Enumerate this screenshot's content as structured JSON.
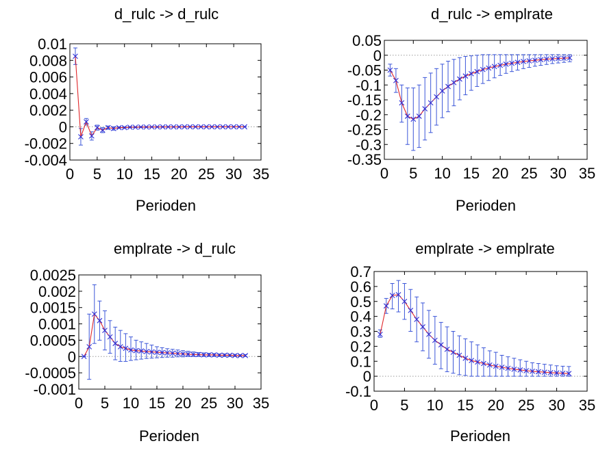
{
  "chart_data": [
    {
      "type": "line",
      "title": "d_rulc -> d_rulc",
      "xlabel": "Perioden",
      "xlim": [
        0,
        35
      ],
      "ylim": [
        -0.004,
        0.01
      ],
      "xticks": [
        0,
        5,
        10,
        15,
        20,
        25,
        30,
        35
      ],
      "xtick_labels": [
        "0",
        "5",
        "10",
        "15",
        "20",
        "25",
        "30",
        "35"
      ],
      "yticks": [
        -0.004,
        -0.002,
        0,
        0.002,
        0.004,
        0.006,
        0.008,
        0.01
      ],
      "ytick_labels": [
        "-0.004",
        "-0.002",
        "0",
        "0.002",
        "0.004",
        "0.006",
        "0.008",
        "0.01"
      ],
      "zero_line": true,
      "x": [
        1,
        2,
        3,
        4,
        5,
        6,
        7,
        8,
        9,
        10,
        11,
        12,
        13,
        14,
        15,
        16,
        17,
        18,
        19,
        20,
        21,
        22,
        23,
        24,
        25,
        26,
        27,
        28,
        29,
        30,
        31,
        32
      ],
      "y": [
        0.0085,
        -0.0012,
        0.0006,
        -0.0011,
        -0.0001,
        -0.0004,
        -0.0001,
        -0.0002,
        -0.0001,
        -0.0001,
        -5e-05,
        -5e-05,
        -3e-05,
        -3e-05,
        -2e-05,
        -2e-05,
        -1e-05,
        -1e-05,
        -1e-05,
        -1e-05,
        0,
        0,
        0,
        0,
        0,
        0,
        0,
        0,
        0,
        0,
        0,
        0
      ],
      "lower": [
        0.0075,
        -0.0022,
        0.0002,
        -0.0016,
        -0.0004,
        -0.0007,
        -0.0003,
        -0.0004,
        -0.0002,
        -0.0002,
        -0.00012,
        -0.0001,
        -8e-05,
        -7e-05,
        -5e-05,
        -5e-05,
        -4e-05,
        -3e-05,
        -3e-05,
        -3e-05,
        -2e-05,
        -2e-05,
        -2e-05,
        -2e-05,
        -1e-05,
        -1e-05,
        -1e-05,
        -1e-05,
        -1e-05,
        -1e-05,
        -1e-05,
        -1e-05
      ],
      "upper": [
        0.0095,
        -0.0002,
        0.001,
        -0.0006,
        0.0002,
        -0.0001,
        0.0001,
        0,
        0,
        0,
        2e-05,
        0,
        2e-05,
        1e-05,
        1e-05,
        1e-05,
        2e-05,
        1e-05,
        1e-05,
        1e-05,
        2e-05,
        2e-05,
        2e-05,
        2e-05,
        1e-05,
        1e-05,
        1e-05,
        1e-05,
        1e-05,
        1e-05,
        1e-05,
        1e-05
      ]
    },
    {
      "type": "line",
      "title": "d_rulc -> emplrate",
      "xlabel": "Perioden",
      "xlim": [
        0,
        35
      ],
      "ylim": [
        -0.35,
        0.05
      ],
      "xticks": [
        0,
        5,
        10,
        15,
        20,
        25,
        30,
        35
      ],
      "xtick_labels": [
        "0",
        "5",
        "10",
        "15",
        "20",
        "25",
        "30",
        "35"
      ],
      "yticks": [
        -0.35,
        -0.3,
        -0.25,
        -0.2,
        -0.15,
        -0.1,
        -0.05,
        0,
        0.05
      ],
      "ytick_labels": [
        "-0.35",
        "-0.3",
        "-0.25",
        "-0.2",
        "-0.15",
        "-0.1",
        "-0.05",
        "0",
        "0.05"
      ],
      "zero_line": true,
      "x": [
        1,
        2,
        3,
        4,
        5,
        6,
        7,
        8,
        9,
        10,
        11,
        12,
        13,
        14,
        15,
        16,
        17,
        18,
        19,
        20,
        21,
        22,
        23,
        24,
        25,
        26,
        27,
        28,
        29,
        30,
        31,
        32
      ],
      "y": [
        -0.05,
        -0.085,
        -0.16,
        -0.205,
        -0.215,
        -0.205,
        -0.18,
        -0.16,
        -0.14,
        -0.12,
        -0.105,
        -0.092,
        -0.08,
        -0.07,
        -0.062,
        -0.055,
        -0.048,
        -0.043,
        -0.038,
        -0.034,
        -0.03,
        -0.027,
        -0.024,
        -0.021,
        -0.019,
        -0.017,
        -0.015,
        -0.013,
        -0.012,
        -0.011,
        -0.01,
        -0.009
      ],
      "lower": [
        -0.07,
        -0.125,
        -0.225,
        -0.3,
        -0.32,
        -0.31,
        -0.285,
        -0.26,
        -0.235,
        -0.21,
        -0.19,
        -0.17,
        -0.15,
        -0.133,
        -0.118,
        -0.105,
        -0.095,
        -0.085,
        -0.076,
        -0.068,
        -0.061,
        -0.055,
        -0.05,
        -0.045,
        -0.041,
        -0.037,
        -0.034,
        -0.031,
        -0.028,
        -0.026,
        -0.024,
        -0.022
      ],
      "upper": [
        -0.03,
        -0.045,
        -0.1,
        -0.11,
        -0.11,
        -0.1,
        -0.075,
        -0.06,
        -0.045,
        -0.03,
        -0.02,
        -0.014,
        -0.008,
        -0.004,
        -0.002,
        0,
        0.002,
        0.002,
        0.002,
        0.002,
        0.002,
        0.002,
        0.002,
        0.002,
        0.002,
        0.002,
        0.002,
        0.002,
        0.002,
        0.002,
        0.002,
        0.002
      ]
    },
    {
      "type": "line",
      "title": "emplrate -> d_rulc",
      "xlabel": "Perioden",
      "xlim": [
        0,
        35
      ],
      "ylim": [
        -0.001,
        0.0025
      ],
      "xticks": [
        0,
        5,
        10,
        15,
        20,
        25,
        30,
        35
      ],
      "xtick_labels": [
        "0",
        "5",
        "10",
        "15",
        "20",
        "25",
        "30",
        "35"
      ],
      "yticks": [
        -0.001,
        -0.0005,
        0,
        0.0005,
        0.001,
        0.0015,
        0.002,
        0.0025
      ],
      "ytick_labels": [
        "-0.001",
        "-0.0005",
        "0",
        "0.0005",
        "0.001",
        "0.0015",
        "0.002",
        "0.0025"
      ],
      "zero_line": true,
      "x": [
        1,
        2,
        3,
        4,
        5,
        6,
        7,
        8,
        9,
        10,
        11,
        12,
        13,
        14,
        15,
        16,
        17,
        18,
        19,
        20,
        21,
        22,
        23,
        24,
        25,
        26,
        27,
        28,
        29,
        30,
        31,
        32
      ],
      "y": [
        0,
        0.0003,
        0.0013,
        0.0011,
        0.0008,
        0.0006,
        0.0004,
        0.0003,
        0.00025,
        0.0002,
        0.00018,
        0.00017,
        0.00015,
        0.00014,
        0.00013,
        0.00012,
        0.00011,
        0.0001,
        9e-05,
        8e-05,
        7e-05,
        6e-05,
        6e-05,
        5e-05,
        5e-05,
        5e-05,
        4e-05,
        4e-05,
        4e-05,
        3e-05,
        3e-05,
        3e-05
      ],
      "lower": [
        0,
        -0.0007,
        0.0004,
        0.0005,
        0.0002,
        0.0001,
        -0.0001,
        -0.00015,
        -0.00015,
        -0.00012,
        -0.0001,
        -8e-05,
        -6e-05,
        -5e-05,
        -4e-05,
        -3e-05,
        -2e-05,
        -2e-05,
        -1e-05,
        -1e-05,
        0,
        0,
        0,
        0,
        0,
        0,
        0,
        0,
        0,
        0,
        0,
        0
      ],
      "upper": [
        0,
        0.0013,
        0.0022,
        0.0017,
        0.0014,
        0.0011,
        0.0009,
        0.0008,
        0.0007,
        0.0006,
        0.0005,
        0.00045,
        0.0004,
        0.00035,
        0.0003,
        0.00027,
        0.00024,
        0.00022,
        0.0002,
        0.00018,
        0.00016,
        0.00014,
        0.00012,
        0.00011,
        0.0001,
        9e-05,
        8e-05,
        8e-05,
        7e-05,
        7e-05,
        6e-05,
        6e-05
      ]
    },
    {
      "type": "line",
      "title": "emplrate -> emplrate",
      "xlabel": "Perioden",
      "xlim": [
        0,
        35
      ],
      "ylim": [
        -0.1,
        0.7
      ],
      "xticks": [
        0,
        5,
        10,
        15,
        20,
        25,
        30,
        35
      ],
      "xtick_labels": [
        "0",
        "5",
        "10",
        "15",
        "20",
        "25",
        "30",
        "35"
      ],
      "yticks": [
        -0.1,
        0,
        0.1,
        0.2,
        0.3,
        0.4,
        0.5,
        0.6,
        0.7
      ],
      "ytick_labels": [
        "-0.1",
        "0",
        "0.1",
        "0.2",
        "0.3",
        "0.4",
        "0.5",
        "0.6",
        "0.7"
      ],
      "zero_line": true,
      "x": [
        1,
        2,
        3,
        4,
        5,
        6,
        7,
        8,
        9,
        10,
        11,
        12,
        13,
        14,
        15,
        16,
        17,
        18,
        19,
        20,
        21,
        22,
        23,
        24,
        25,
        26,
        27,
        28,
        29,
        30,
        31,
        32
      ],
      "y": [
        0.28,
        0.47,
        0.54,
        0.545,
        0.5,
        0.44,
        0.38,
        0.33,
        0.28,
        0.24,
        0.21,
        0.18,
        0.16,
        0.14,
        0.12,
        0.105,
        0.095,
        0.085,
        0.075,
        0.067,
        0.06,
        0.053,
        0.047,
        0.042,
        0.037,
        0.033,
        0.03,
        0.027,
        0.024,
        0.022,
        0.02,
        0.018
      ],
      "lower": [
        0.26,
        0.42,
        0.45,
        0.43,
        0.38,
        0.3,
        0.23,
        0.17,
        0.12,
        0.08,
        0.05,
        0.03,
        0.02,
        0.01,
        0.005,
        0,
        0,
        0,
        0,
        0,
        0,
        0,
        0,
        0,
        0,
        0,
        0,
        0,
        0,
        0,
        0,
        0
      ],
      "upper": [
        0.31,
        0.52,
        0.62,
        0.64,
        0.62,
        0.58,
        0.53,
        0.49,
        0.44,
        0.4,
        0.36,
        0.33,
        0.3,
        0.27,
        0.25,
        0.23,
        0.21,
        0.19,
        0.17,
        0.16,
        0.14,
        0.13,
        0.12,
        0.11,
        0.1,
        0.09,
        0.085,
        0.08,
        0.075,
        0.07,
        0.067,
        0.065
      ]
    }
  ]
}
